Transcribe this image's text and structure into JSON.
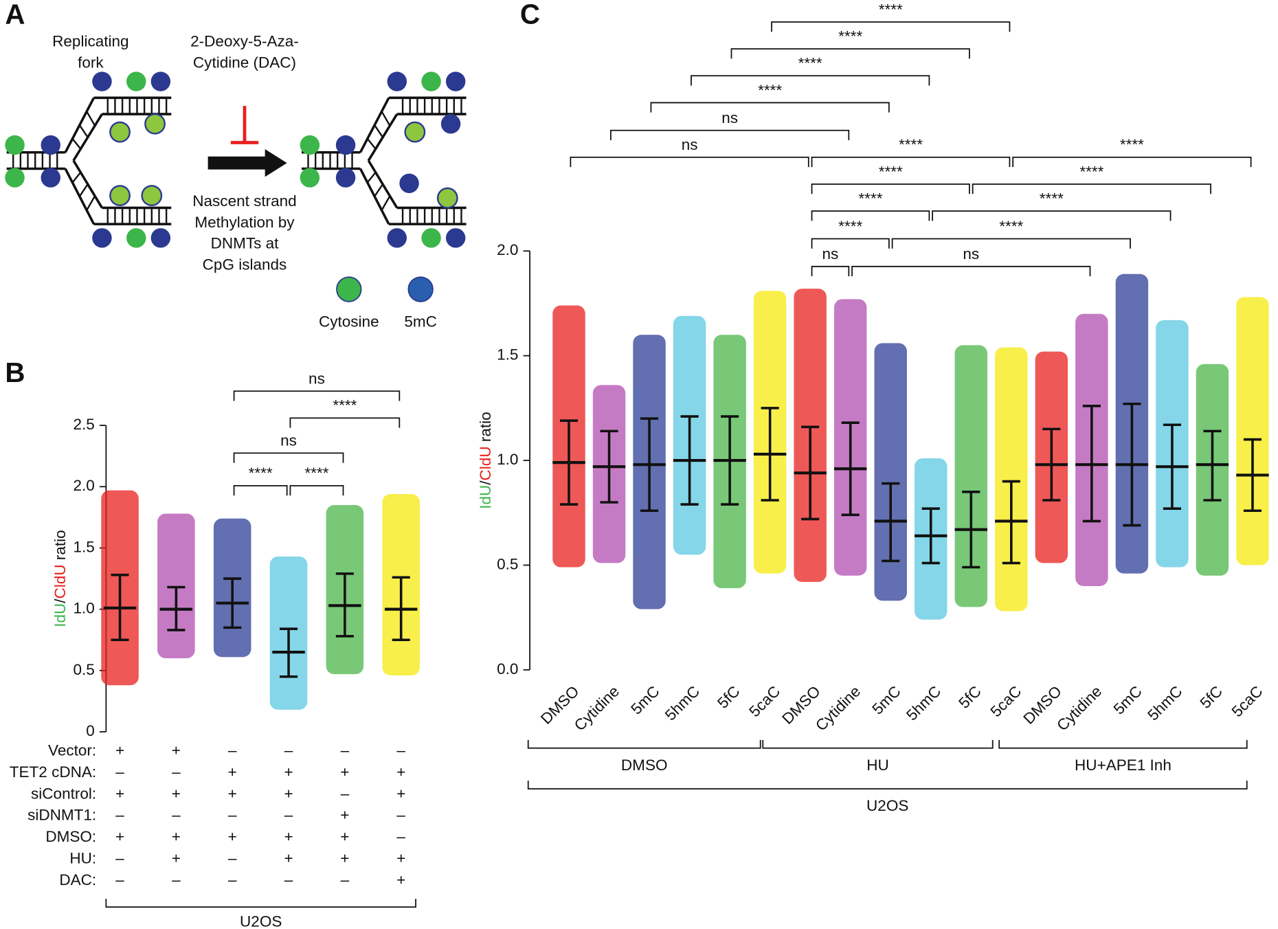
{
  "panel_a": {
    "letter": "A",
    "fork_label": [
      "Replicating",
      "fork"
    ],
    "drug_label": [
      "2-Deoxy-5-Aza-",
      "Cytidine (DAC)"
    ],
    "process_label": [
      "Nascent strand",
      "Methylation by",
      "DNMTs at",
      "CpG islands"
    ],
    "legend": [
      {
        "label": "Cytosine",
        "color": "#3cb54a"
      },
      {
        "label": "5mC",
        "color": "#2a5fae"
      }
    ]
  },
  "chart_data": [
    {
      "type": "dot",
      "panel": "B",
      "ylabel_parts": [
        {
          "text": "IdU",
          "color": "#3cb54a"
        },
        {
          "text": "/",
          "color": "#111111"
        },
        {
          "text": "CldU",
          "color": "#e8201e"
        },
        {
          "text": " ratio",
          "color": "#111111"
        }
      ],
      "ylim": [
        0,
        2.5
      ],
      "yticks": [
        0,
        0.5,
        {
          "value": 1,
          "label": "1.0"
        },
        1.5,
        {
          "value": 2,
          "label": "2.0"
        },
        2.5
      ],
      "colors": [
        "#e8201e",
        "#b14fb0",
        "#2e3f95",
        "#5bc8e0",
        "#4bb54a",
        "#f5e90f"
      ],
      "mean": [
        1.01,
        1.0,
        1.05,
        0.65,
        1.03,
        1.0
      ],
      "error_low": [
        0.75,
        0.83,
        0.85,
        0.45,
        0.78,
        0.75
      ],
      "error_high": [
        1.28,
        1.18,
        1.25,
        0.84,
        1.29,
        1.26
      ],
      "min": [
        0.38,
        0.6,
        0.61,
        0.18,
        0.47,
        0.46
      ],
      "max": [
        1.97,
        1.78,
        1.74,
        1.43,
        1.85,
        1.94
      ],
      "comparisons": [
        "ns",
        "****",
        "ns",
        "****",
        "****"
      ],
      "conditions": [
        {
          "label": "Vector:",
          "values": [
            "+",
            "+",
            "–",
            "–",
            "–",
            "–"
          ]
        },
        {
          "label": "TET2 cDNA:",
          "values": [
            "–",
            "–",
            "+",
            "+",
            "+",
            "+"
          ]
        },
        {
          "label": "siControl:",
          "values": [
            "+",
            "+",
            "+",
            "+",
            "–",
            "+"
          ]
        },
        {
          "label": "siDNMT1:",
          "values": [
            "–",
            "–",
            "–",
            "–",
            "+",
            "–"
          ]
        },
        {
          "label": "DMSO:",
          "values": [
            "+",
            "+",
            "+",
            "+",
            "+",
            "–"
          ]
        },
        {
          "label": "HU:",
          "values": [
            "–",
            "+",
            "–",
            "+",
            "+",
            "+"
          ]
        },
        {
          "label": "DAC:",
          "values": [
            "–",
            "–",
            "–",
            "–",
            "–",
            "+"
          ]
        }
      ],
      "cell_line": "U2OS"
    },
    {
      "type": "dot",
      "panel": "C",
      "ylabel_parts": [
        {
          "text": "IdU",
          "color": "#3cb54a"
        },
        {
          "text": "/",
          "color": "#111111"
        },
        {
          "text": "CldU",
          "color": "#e8201e"
        },
        {
          "text": " ratio",
          "color": "#111111"
        }
      ],
      "ylim": [
        0,
        2.0
      ],
      "yticks": [
        {
          "value": 0,
          "label": "0.0"
        },
        0.5,
        {
          "value": 1,
          "label": "1.0"
        },
        1.5,
        {
          "value": 2,
          "label": "2.0"
        }
      ],
      "categories": [
        "DMSO",
        "Cytidine",
        "5mC",
        "5hmC",
        "5fC",
        "5caC",
        "DMSO",
        "Cytidine",
        "5mC",
        "5hmC",
        "5fC",
        "5caC",
        "DMSO",
        "Cytidine",
        "5mC",
        "5hmC",
        "5fC",
        "5caC"
      ],
      "colors": [
        "#e8201e",
        "#b14fb0",
        "#2e3f95",
        "#5bc8e0",
        "#4bb54a",
        "#f5e90f",
        "#e8201e",
        "#b14fb0",
        "#2e3f95",
        "#5bc8e0",
        "#4bb54a",
        "#f5e90f",
        "#e8201e",
        "#b14fb0",
        "#2e3f95",
        "#5bc8e0",
        "#4bb54a",
        "#f5e90f"
      ],
      "mean": [
        0.99,
        0.97,
        0.98,
        1.0,
        1.0,
        1.03,
        0.94,
        0.96,
        0.71,
        0.64,
        0.67,
        0.71,
        0.98,
        0.98,
        0.98,
        0.97,
        0.98,
        0.93
      ],
      "error_low": [
        0.79,
        0.8,
        0.76,
        0.79,
        0.79,
        0.81,
        0.72,
        0.74,
        0.52,
        0.51,
        0.49,
        0.51,
        0.81,
        0.71,
        0.69,
        0.77,
        0.81,
        0.76
      ],
      "error_high": [
        1.19,
        1.14,
        1.2,
        1.21,
        1.21,
        1.25,
        1.16,
        1.18,
        0.89,
        0.77,
        0.85,
        0.9,
        1.15,
        1.26,
        1.27,
        1.17,
        1.14,
        1.1
      ],
      "min": [
        0.49,
        0.51,
        0.29,
        0.55,
        0.39,
        0.46,
        0.42,
        0.45,
        0.33,
        0.24,
        0.3,
        0.28,
        0.51,
        0.4,
        0.46,
        0.49,
        0.45,
        0.5
      ],
      "max": [
        1.74,
        1.36,
        1.6,
        1.69,
        1.6,
        1.81,
        1.82,
        1.77,
        1.56,
        1.01,
        1.55,
        1.54,
        1.52,
        1.7,
        1.89,
        1.67,
        1.46,
        1.78
      ],
      "comparisons": [
        "****",
        "****",
        "****",
        "****",
        "ns",
        "ns",
        "****",
        "****",
        "****",
        "****",
        "****",
        "****",
        "****",
        "****",
        "ns",
        "ns"
      ],
      "treatment_groups": [
        "DMSO",
        "HU",
        "HU+APE1 Inh"
      ],
      "cell_line": "U2OS"
    }
  ]
}
